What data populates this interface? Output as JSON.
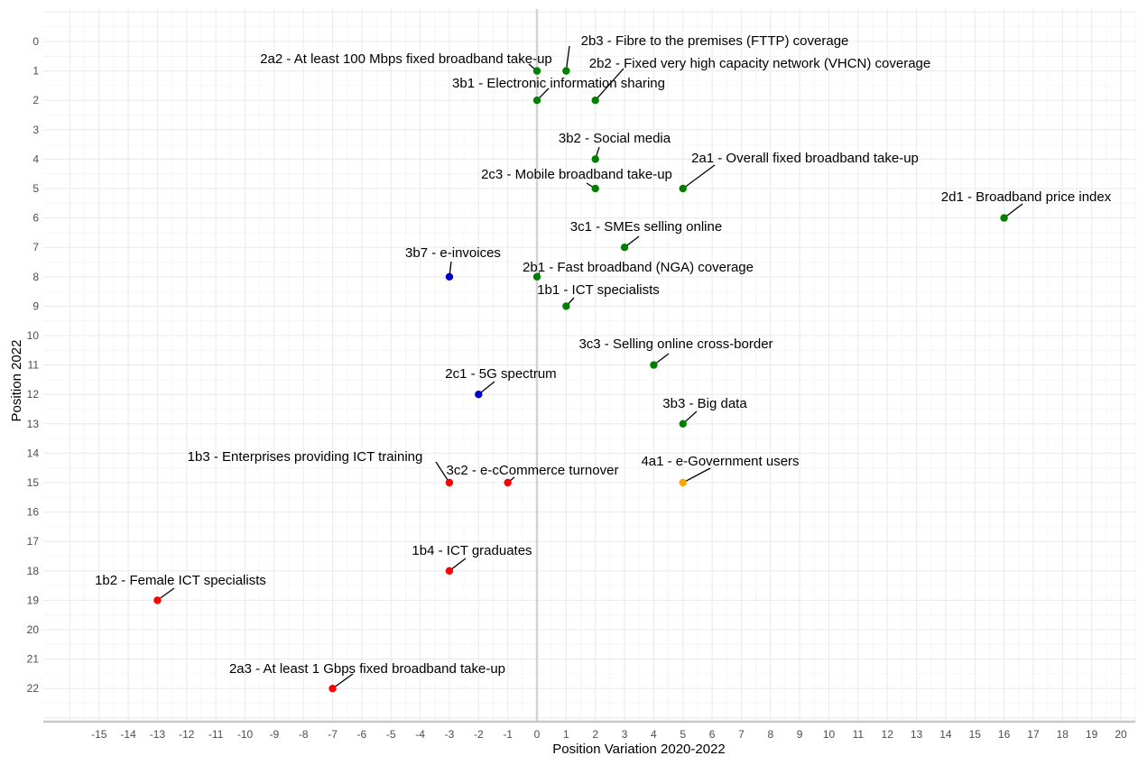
{
  "chart_data": {
    "type": "scatter",
    "xlabel": "Position Variation 2020-2022",
    "ylabel": "Position 2022",
    "xlim": [
      -15,
      20
    ],
    "ylim": [
      0,
      22
    ],
    "y_reversed": true,
    "grid": true,
    "x_ticks": [
      -15,
      -14,
      -13,
      -12,
      -11,
      -10,
      -9,
      -8,
      -7,
      -6,
      -5,
      -4,
      -3,
      -2,
      -1,
      0,
      1,
      2,
      3,
      4,
      5,
      6,
      7,
      8,
      9,
      10,
      11,
      12,
      13,
      14,
      15,
      16,
      17,
      18,
      19,
      20
    ],
    "y_ticks": [
      0,
      1,
      2,
      3,
      4,
      5,
      6,
      7,
      8,
      9,
      10,
      11,
      12,
      13,
      14,
      15,
      16,
      17,
      18,
      19,
      20,
      21,
      22
    ],
    "colors": {
      "green": "#008000",
      "blue": "#0000cd",
      "red": "#ff0000",
      "orange": "#ffa500"
    },
    "points": [
      {
        "label": "2a2 - At least 100 Mbps fixed broadband take-up",
        "x": 0,
        "y": 1,
        "color": "green"
      },
      {
        "label": "2b3 - Fibre to the premises (FTTP) coverage",
        "x": 1,
        "y": 1,
        "color": "green"
      },
      {
        "label": "2b2 - Fixed very high capacity network (VHCN) coverage",
        "x": 2,
        "y": 2,
        "color": "green"
      },
      {
        "label": "3b1 - Electronic information sharing",
        "x": 0,
        "y": 2,
        "color": "green"
      },
      {
        "label": "3b2 - Social media",
        "x": 2,
        "y": 4,
        "color": "green"
      },
      {
        "label": "2c3 - Mobile broadband take-up",
        "x": 2,
        "y": 5,
        "color": "green"
      },
      {
        "label": "2a1 - Overall fixed broadband take-up",
        "x": 5,
        "y": 5,
        "color": "green"
      },
      {
        "label": "2d1 - Broadband price index",
        "x": 16,
        "y": 6,
        "color": "green"
      },
      {
        "label": "3c1 - SMEs selling online",
        "x": 3,
        "y": 7,
        "color": "green"
      },
      {
        "label": "3b7 - e-invoices",
        "x": -3,
        "y": 8,
        "color": "blue"
      },
      {
        "label": "2b1 - Fast broadband (NGA) coverage",
        "x": 0,
        "y": 8,
        "color": "green"
      },
      {
        "label": "1b1 - ICT specialists",
        "x": 1,
        "y": 9,
        "color": "green"
      },
      {
        "label": "3c3 - Selling online cross-border",
        "x": 4,
        "y": 11,
        "color": "green"
      },
      {
        "label": "2c1 - 5G spectrum",
        "x": -2,
        "y": 12,
        "color": "blue"
      },
      {
        "label": "3b3 - Big data",
        "x": 5,
        "y": 13,
        "color": "green"
      },
      {
        "label": "1b3 - Enterprises providing ICT training",
        "x": -3,
        "y": 15,
        "color": "red"
      },
      {
        "label": "3c2 - e-cCommerce turnover",
        "x": -1,
        "y": 15,
        "color": "red"
      },
      {
        "label": "4a1 - e-Government users",
        "x": 5,
        "y": 15,
        "color": "orange"
      },
      {
        "label": "1b4 - ICT graduates",
        "x": -3,
        "y": 18,
        "color": "red"
      },
      {
        "label": "1b2 - Female ICT specialists",
        "x": -13,
        "y": 19,
        "color": "red"
      },
      {
        "label": "2a3 - At least 1 Gbps fixed broadband take-up",
        "x": -7,
        "y": 22,
        "color": "red"
      }
    ]
  }
}
